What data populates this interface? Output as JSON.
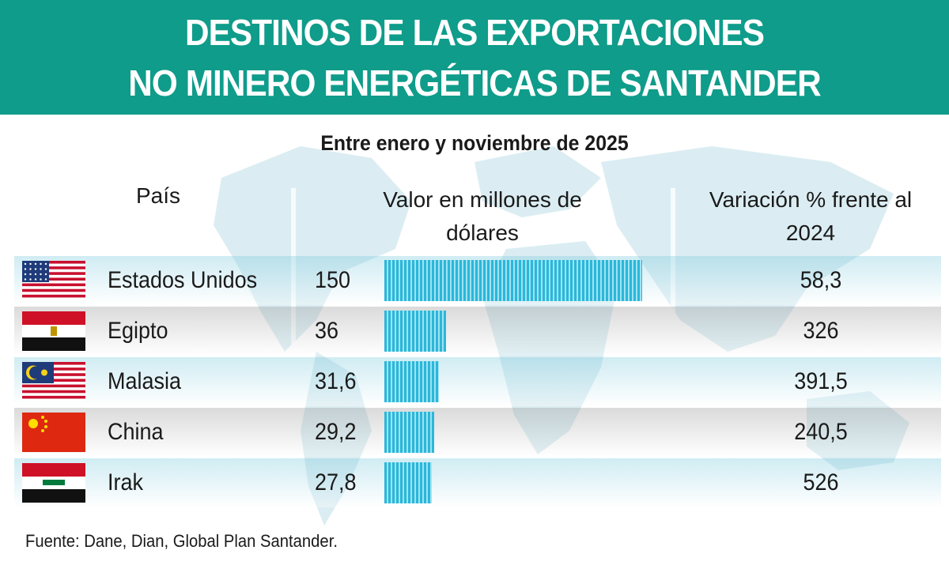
{
  "title": {
    "line1": "DESTINOS DE LAS EXPORTACIONES",
    "line2": "NO MINERO ENERGÉTICAS DE SANTANDER"
  },
  "subtitle": "Entre enero y noviembre de  2025",
  "headers": {
    "country": "País",
    "value": "Valor en millones de dólares",
    "variation": "Variación % frente al 2024"
  },
  "source": "Fuente: Dane, Dian, Global Plan Santander.",
  "colors": {
    "banner": "#0f9c8a",
    "bar": "#2bb7d9",
    "bar_stripe": "#9fe3f3"
  },
  "chart_data": {
    "type": "bar",
    "orientation": "horizontal",
    "categories": [
      "Estados Unidos",
      "Egipto",
      "Malasia",
      "China",
      "Irak"
    ],
    "values": [
      150,
      36,
      31.6,
      29.2,
      27.8
    ],
    "value_labels": [
      "150",
      "36",
      "31,6",
      "29,2",
      "27,8"
    ],
    "variation": [
      "58,3",
      "326",
      "391,5",
      "240,5",
      "526"
    ],
    "flags": [
      "usa-flag-icon",
      "egypt-flag-icon",
      "malaysia-flag-icon",
      "china-flag-icon",
      "iraq-flag-icon"
    ],
    "xlim": [
      0,
      150
    ],
    "grid": false
  }
}
